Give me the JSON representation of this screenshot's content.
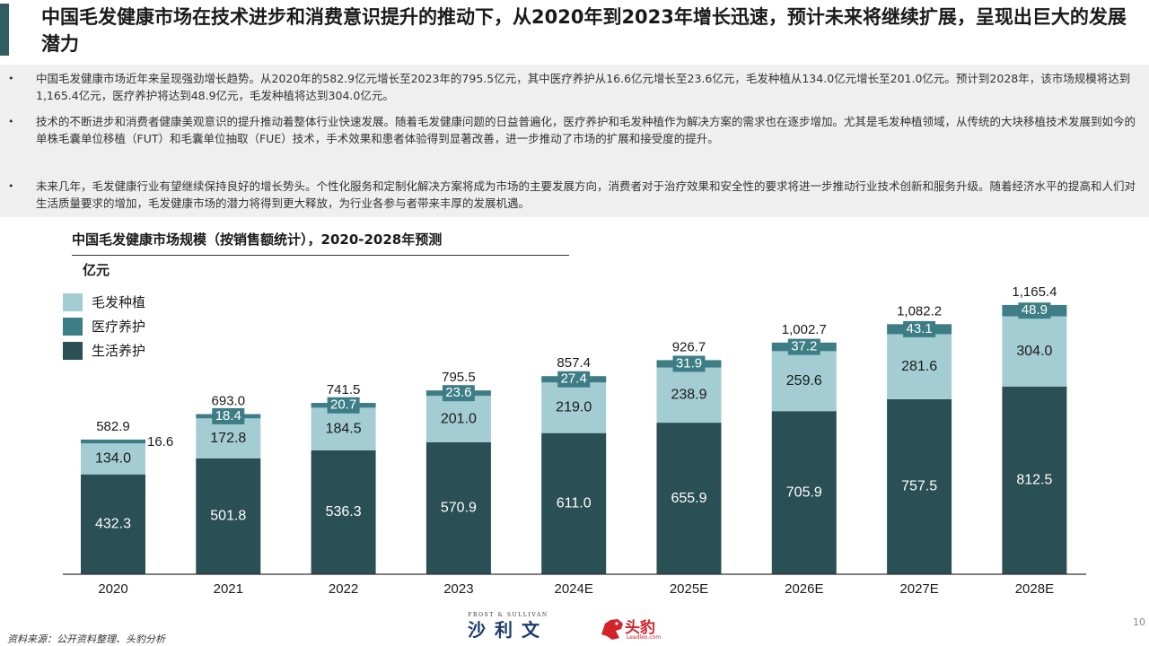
{
  "title": "中国毛发健康市场在技术进步和消费意识提升的推动下，从2020年到2023年增长迅速，预计未来将继续扩展，呈现出巨大的发展潜力",
  "bullets": [
    "中国毛发健康市场近年来呈现强劲增长趋势。从2020年的582.9亿元增长至2023年的795.5亿元，其中医疗养护从16.6亿元增长至23.6亿元，毛发种植从134.0亿元增长至201.0亿元。预计到2028年，该市场规模将达到1,165.4亿元，医疗养护将达到48.9亿元，毛发种植将达到304.0亿元。",
    "技术的不断进步和消费者健康美观意识的提升推动着整体行业快速发展。随着毛发健康问题的日益普遍化，医疗养护和毛发种植作为解决方案的需求也在逐步增加。尤其是毛发种植领域，从传统的大块移植技术发展到如今的单株毛囊单位移植（FUT）和毛囊单位抽取（FUE）技术，手术效果和患者体验得到显著改善，进一步推动了市场的扩展和接受度的提升。",
    "未来几年，毛发健康行业有望继续保持良好的增长势头。个性化服务和定制化解决方案将成为市场的主要发展方向，消费者对于治疗效果和安全性的要求将进一步推动行业技术创新和服务升级。随着经济水平的提高和人们对生活质量要求的增加，毛发健康市场的潜力将得到更大释放，为行业各参与者带来丰厚的发展机遇。"
  ],
  "bullet_marker": "•",
  "chart_data": {
    "type": "bar",
    "stacked": true,
    "title": "中国毛发健康市场规模（按销售额统计），2020-2028年预测",
    "unit": "亿元",
    "categories": [
      "2020",
      "2021",
      "2022",
      "2023",
      "2024E",
      "2025E",
      "2026E",
      "2027E",
      "2028E"
    ],
    "series": [
      {
        "name": "生活养护",
        "color": "#2a4f55",
        "label_color": "#ffffff",
        "values": [
          432.3,
          501.8,
          536.3,
          570.9,
          611.0,
          655.9,
          705.9,
          757.5,
          812.5
        ]
      },
      {
        "name": "毛发种植",
        "color": "#a3cdd3",
        "label_color": "#1a1a1a",
        "values": [
          134.0,
          172.8,
          184.5,
          201.0,
          219.0,
          238.9,
          259.6,
          281.6,
          304.0
        ]
      },
      {
        "name": "医疗养护",
        "color": "#3d7d86",
        "label_color": "#ffffff",
        "values": [
          16.6,
          18.4,
          20.7,
          23.6,
          27.4,
          31.9,
          37.2,
          43.1,
          48.9
        ]
      }
    ],
    "series_labels": [
      [
        "432.3",
        "501.8",
        "536.3",
        "570.9",
        "611.0",
        "655.9",
        "705.9",
        "757.5",
        "812.5"
      ],
      [
        "134.0",
        "172.8",
        "184.5",
        "201.0",
        "219.0",
        "238.9",
        "259.6",
        "281.6",
        "304.0"
      ],
      [
        "16.6",
        "18.4",
        "20.7",
        "23.6",
        "27.4",
        "31.9",
        "37.2",
        "43.1",
        "48.9"
      ]
    ],
    "totals": [
      "582.9",
      "693.0",
      "741.5",
      "795.5",
      "857.4",
      "926.7",
      "1,002.7",
      "1,082.2",
      "1,165.4"
    ],
    "legend": [
      "毛发种植",
      "医疗养护",
      "生活养护"
    ],
    "legend_colors": [
      "#a3cdd3",
      "#3d7d86",
      "#2a4f55"
    ],
    "legend_position": "top-left",
    "ylim": [
      0,
      1300
    ],
    "grid": false,
    "axis_color": "#333333"
  },
  "source": "资料来源：公开资料整理、头豹分析",
  "page_number": "10",
  "logos": {
    "frost_en": "FROST & SULLIVAN",
    "frost_cn": "沙利文",
    "leadleo_cn": "头豹",
    "leadleo_url": "Leadleo.com"
  },
  "colors": {
    "accent": "#2f5d62",
    "bullet_bg": "#efefef",
    "frost_blue": "#1d3c6e",
    "leadleo_red": "#d2232a"
  }
}
